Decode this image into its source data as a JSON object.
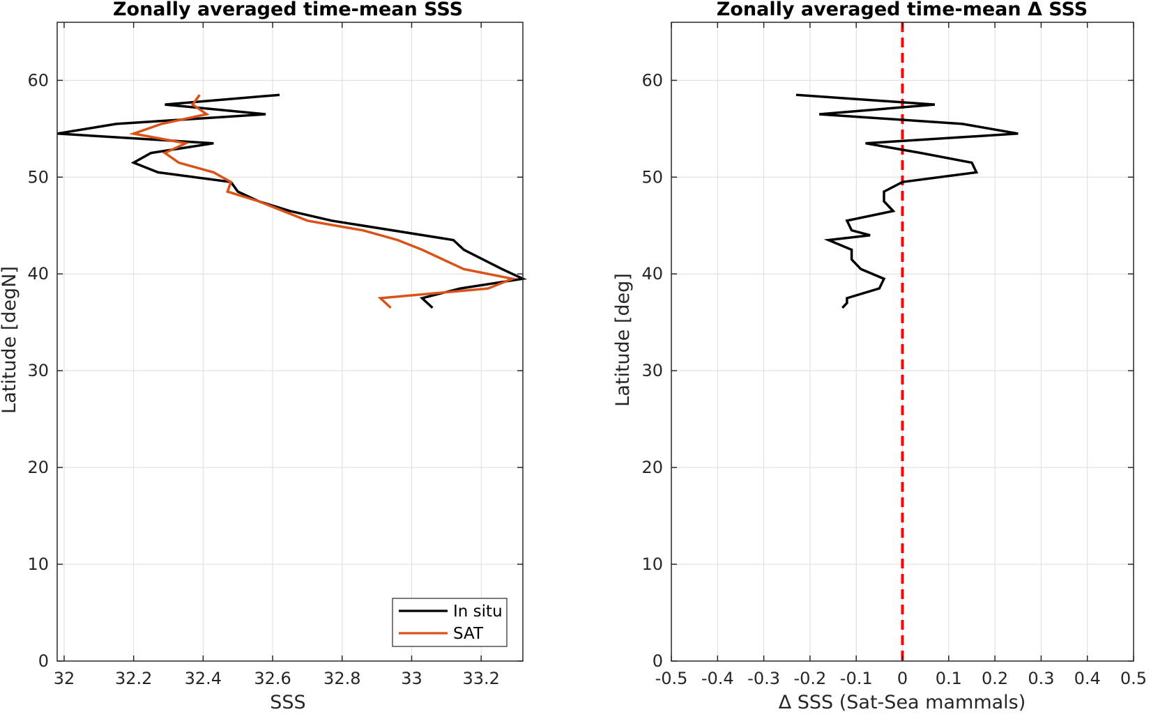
{
  "chart_data": [
    {
      "type": "line",
      "title": "Zonally averaged time-mean SSS",
      "xlabel": "SSS",
      "ylabel": "Latitude [degN]",
      "xlim": [
        31.98,
        33.32
      ],
      "ylim": [
        0,
        66
      ],
      "xticks": [
        32,
        32.2,
        32.4,
        32.6,
        32.8,
        33,
        33.2
      ],
      "xtick_labels": [
        "32",
        "32.2",
        "32.4",
        "32.6",
        "32.8",
        "33",
        "33.2"
      ],
      "yticks": [
        0,
        10,
        20,
        30,
        40,
        50,
        60
      ],
      "ytick_labels": [
        "0",
        "10",
        "20",
        "30",
        "40",
        "50",
        "60"
      ],
      "grid": true,
      "legend": "bottom-right",
      "series": [
        {
          "name": "In situ",
          "color": "#000000",
          "x": [
            32.62,
            32.29,
            32.58,
            32.15,
            31.98,
            32.43,
            32.25,
            32.2,
            32.27,
            32.48,
            32.5,
            32.56,
            32.65,
            32.77,
            33.12,
            33.15,
            33.26,
            33.32,
            33.14,
            33.03,
            33.06
          ],
          "y": [
            58.5,
            57.5,
            56.5,
            55.5,
            54.5,
            53.5,
            52.5,
            51.5,
            50.5,
            49.5,
            48.5,
            47.5,
            46.5,
            45.5,
            43.5,
            42.5,
            40.5,
            39.5,
            38.5,
            37.5,
            36.5
          ]
        },
        {
          "name": "SAT",
          "color": "#d95319",
          "x": [
            32.39,
            32.37,
            32.41,
            32.28,
            32.2,
            32.35,
            32.29,
            32.33,
            32.43,
            32.48,
            32.47,
            32.56,
            32.7,
            32.86,
            32.96,
            33.03,
            33.09,
            33.15,
            33.29,
            33.22,
            32.91,
            32.94
          ],
          "y": [
            58.5,
            57.5,
            56.5,
            55.5,
            54.5,
            53.5,
            52.5,
            51.5,
            50.5,
            49.5,
            48.5,
            47.5,
            45.5,
            44.5,
            43.5,
            42.5,
            41.5,
            40.5,
            39.5,
            38.5,
            37.5,
            36.5
          ]
        }
      ]
    },
    {
      "type": "line",
      "title": "Zonally averaged time-mean Δ SSS",
      "xlabel": "Δ SSS (Sat-Sea mammals)",
      "ylabel": "Latitude [deg]",
      "xlim": [
        -0.5,
        0.5
      ],
      "ylim": [
        0,
        66
      ],
      "xticks": [
        -0.5,
        -0.4,
        -0.3,
        -0.2,
        -0.1,
        0,
        0.1,
        0.2,
        0.3,
        0.4,
        0.5
      ],
      "xtick_labels": [
        "-0.5",
        "-0.4",
        "-0.3",
        "-0.2",
        "-0.1",
        "0",
        "0.1",
        "0.2",
        "0.3",
        "0.4",
        "0.5"
      ],
      "yticks": [
        0,
        10,
        20,
        30,
        40,
        50,
        60
      ],
      "ytick_labels": [
        "0",
        "10",
        "20",
        "30",
        "40",
        "50",
        "60"
      ],
      "grid": true,
      "reference_line": {
        "x": 0,
        "color": "#ff0000",
        "style": "dashed"
      },
      "series": [
        {
          "color": "#000000",
          "x": [
            -0.23,
            0.07,
            -0.18,
            0.13,
            0.25,
            -0.08,
            0.04,
            0.15,
            0.16,
            0.0,
            -0.04,
            -0.04,
            -0.03,
            -0.02,
            -0.12,
            -0.11,
            -0.07,
            -0.16,
            -0.11,
            -0.11,
            -0.09,
            -0.04,
            -0.05,
            -0.12,
            -0.12,
            -0.13
          ],
          "y": [
            58.5,
            57.5,
            56.5,
            55.5,
            54.5,
            53.5,
            52.5,
            51.5,
            50.5,
            49.5,
            48.5,
            47.5,
            47.0,
            46.5,
            45.5,
            44.5,
            44.0,
            43.5,
            42.5,
            41.5,
            40.5,
            39.5,
            38.5,
            37.5,
            37.0,
            36.5
          ]
        }
      ]
    }
  ]
}
